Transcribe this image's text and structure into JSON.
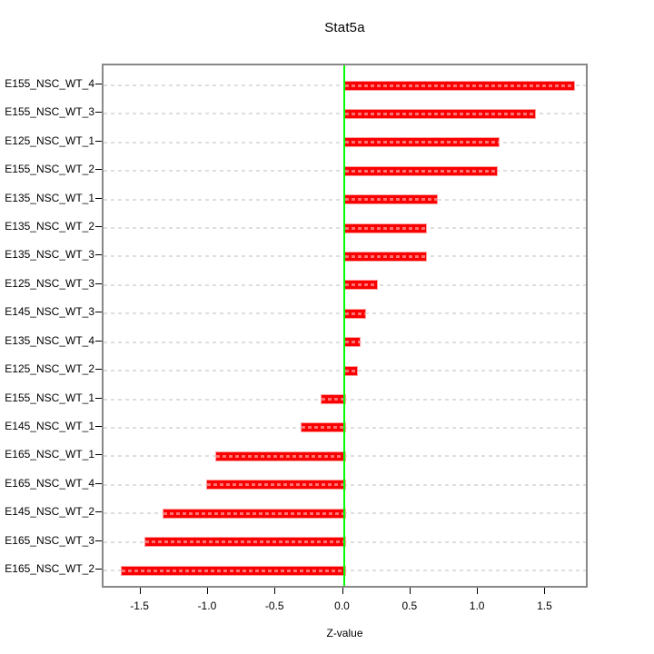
{
  "figure": {
    "title": "Stat5a",
    "xlabel": "Z-value"
  },
  "chart_data": {
    "type": "bar",
    "orientation": "horizontal",
    "title": "Stat5a",
    "xlabel": "Z-value",
    "ylabel": "",
    "categories": [
      "E155_NSC_WT_4",
      "E155_NSC_WT_3",
      "E125_NSC_WT_1",
      "E155_NSC_WT_2",
      "E135_NSC_WT_1",
      "E135_NSC_WT_2",
      "E135_NSC_WT_3",
      "E125_NSC_WT_3",
      "E145_NSC_WT_3",
      "E135_NSC_WT_4",
      "E125_NSC_WT_2",
      "E155_NSC_WT_1",
      "E145_NSC_WT_1",
      "E165_NSC_WT_1",
      "E165_NSC_WT_4",
      "E145_NSC_WT_2",
      "E165_NSC_WT_3",
      "E165_NSC_WT_2"
    ],
    "values": [
      1.7,
      1.41,
      1.14,
      1.13,
      0.68,
      0.6,
      0.6,
      0.24,
      0.15,
      0.11,
      0.09,
      -0.17,
      -0.32,
      -0.95,
      -1.02,
      -1.34,
      -1.48,
      -1.65
    ],
    "xticks": [
      -1.5,
      -1.0,
      -0.5,
      0.0,
      0.5,
      1.0,
      1.5
    ],
    "xtick_labels": [
      "-1.5",
      "-1.0",
      "-0.5",
      "0.0",
      "0.5",
      "1.0",
      "1.5"
    ],
    "xlim": [
      -1.78,
      1.82
    ],
    "grid": "horizontal-dashed",
    "legend": "none",
    "zero_reference_line": 0.0,
    "colors": {
      "bar": "#fa0000",
      "bar_border": "#ff9e9e",
      "zero_line": "#00ff00",
      "grid": "#dedede",
      "box_border": "#888888",
      "text": "#000000",
      "background": "#ffffff"
    }
  }
}
